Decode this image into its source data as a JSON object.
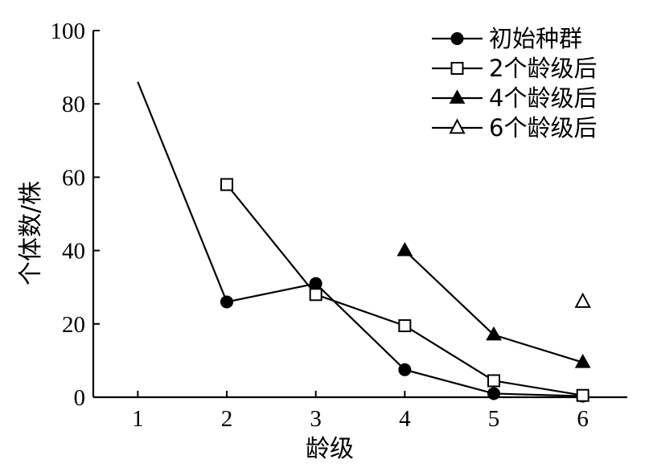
{
  "chart_data": {
    "type": "line",
    "xlabel": "龄级",
    "ylabel": "个体数/株",
    "x_ticks": [
      "1",
      "2",
      "3",
      "4",
      "5",
      "6"
    ],
    "y_ticks": [
      "0",
      "20",
      "40",
      "60",
      "80",
      "100"
    ],
    "xlim": [
      0.5,
      6.5
    ],
    "ylim": [
      0,
      100
    ],
    "grid": false,
    "legend_position": "top-right",
    "series": [
      {
        "name": "初始种群",
        "marker": "filled-circle",
        "x": [
          1,
          2,
          3,
          4,
          5,
          6
        ],
        "y": [
          86,
          26,
          31,
          7.5,
          1,
          0.3
        ],
        "show_marker": [
          false,
          true,
          true,
          true,
          true,
          true
        ]
      },
      {
        "name": "2个龄级后",
        "marker": "open-square",
        "x": [
          2,
          3,
          4,
          5,
          6
        ],
        "y": [
          58,
          28,
          19.5,
          4.5,
          0.5
        ]
      },
      {
        "name": "4个龄级后",
        "marker": "filled-triangle",
        "x": [
          4,
          5,
          6
        ],
        "y": [
          40,
          17,
          9.5
        ]
      },
      {
        "name": "6个龄级后",
        "marker": "open-triangle",
        "x": [
          6
        ],
        "y": [
          26
        ]
      }
    ]
  }
}
